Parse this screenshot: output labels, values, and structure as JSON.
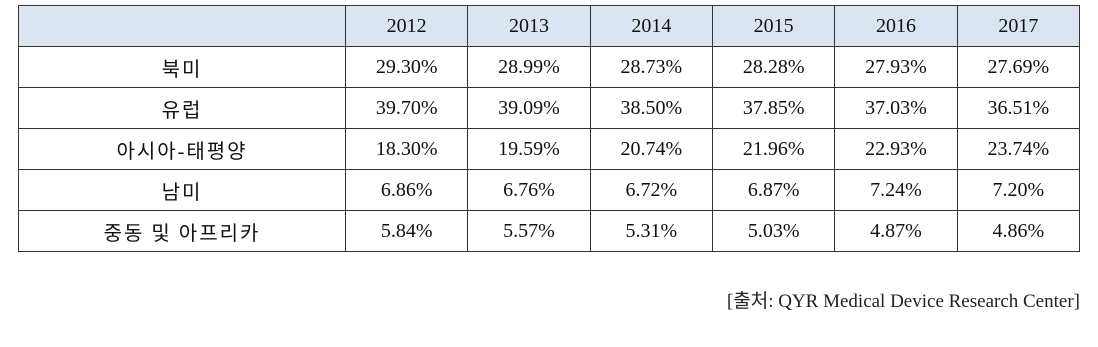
{
  "table": {
    "columns": [
      "2012",
      "2013",
      "2014",
      "2015",
      "2016",
      "2017"
    ],
    "rows": [
      [
        "북미",
        "29.30%",
        "28.99%",
        "28.73%",
        "28.28%",
        "27.93%",
        "27.69%"
      ],
      [
        "유럽",
        "39.70%",
        "39.09%",
        "38.50%",
        "37.85%",
        "37.03%",
        "36.51%"
      ],
      [
        "아시아-태평양",
        "18.30%",
        "19.59%",
        "20.74%",
        "21.96%",
        "22.93%",
        "23.74%"
      ],
      [
        "남미",
        "6.86%",
        "6.76%",
        "6.72%",
        "6.87%",
        "7.24%",
        "7.20%"
      ],
      [
        "중동 및 아프리카",
        "5.84%",
        "5.57%",
        "5.31%",
        "5.03%",
        "4.87%",
        "4.86%"
      ]
    ]
  },
  "source": "[출처: QYR Medical Device Research Center]"
}
